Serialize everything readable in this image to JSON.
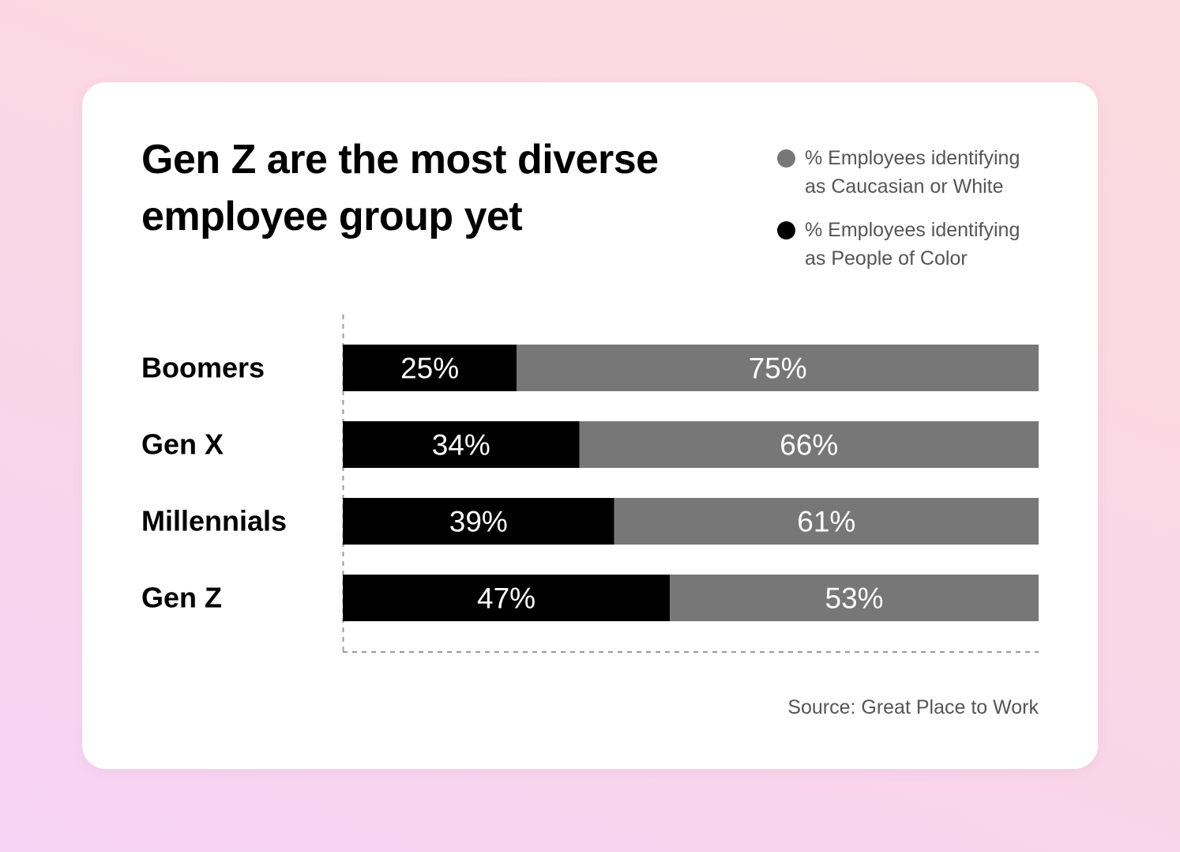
{
  "title_lines": [
    "Gen Z are the most diverse",
    "employee group yet"
  ],
  "legend": [
    {
      "lines": [
        "% Employees identifying",
        "as Caucasian or White"
      ],
      "color": "#777777"
    },
    {
      "lines": [
        "% Employees identifying",
        "as People of Color"
      ],
      "color": "#000000"
    }
  ],
  "source": "Source: Great Place to Work",
  "chart_data": {
    "type": "bar",
    "orientation": "horizontal",
    "stacked": true,
    "normalized": true,
    "categories": [
      "Boomers",
      "Gen X",
      "Millennials",
      "Gen Z"
    ],
    "series": [
      {
        "name": "% Employees identifying as People of Color",
        "values": [
          25,
          34,
          39,
          47
        ],
        "color": "#000000"
      },
      {
        "name": "% Employees identifying as Caucasian or White",
        "values": [
          75,
          66,
          61,
          53
        ],
        "color": "#777777"
      }
    ],
    "data_labels": [
      [
        "25%",
        "75%"
      ],
      [
        "34%",
        "66%"
      ],
      [
        "39%",
        "61%"
      ],
      [
        "47%",
        "53%"
      ]
    ],
    "xlim": [
      0,
      100
    ],
    "legend_position": "top-right",
    "grid": false
  }
}
